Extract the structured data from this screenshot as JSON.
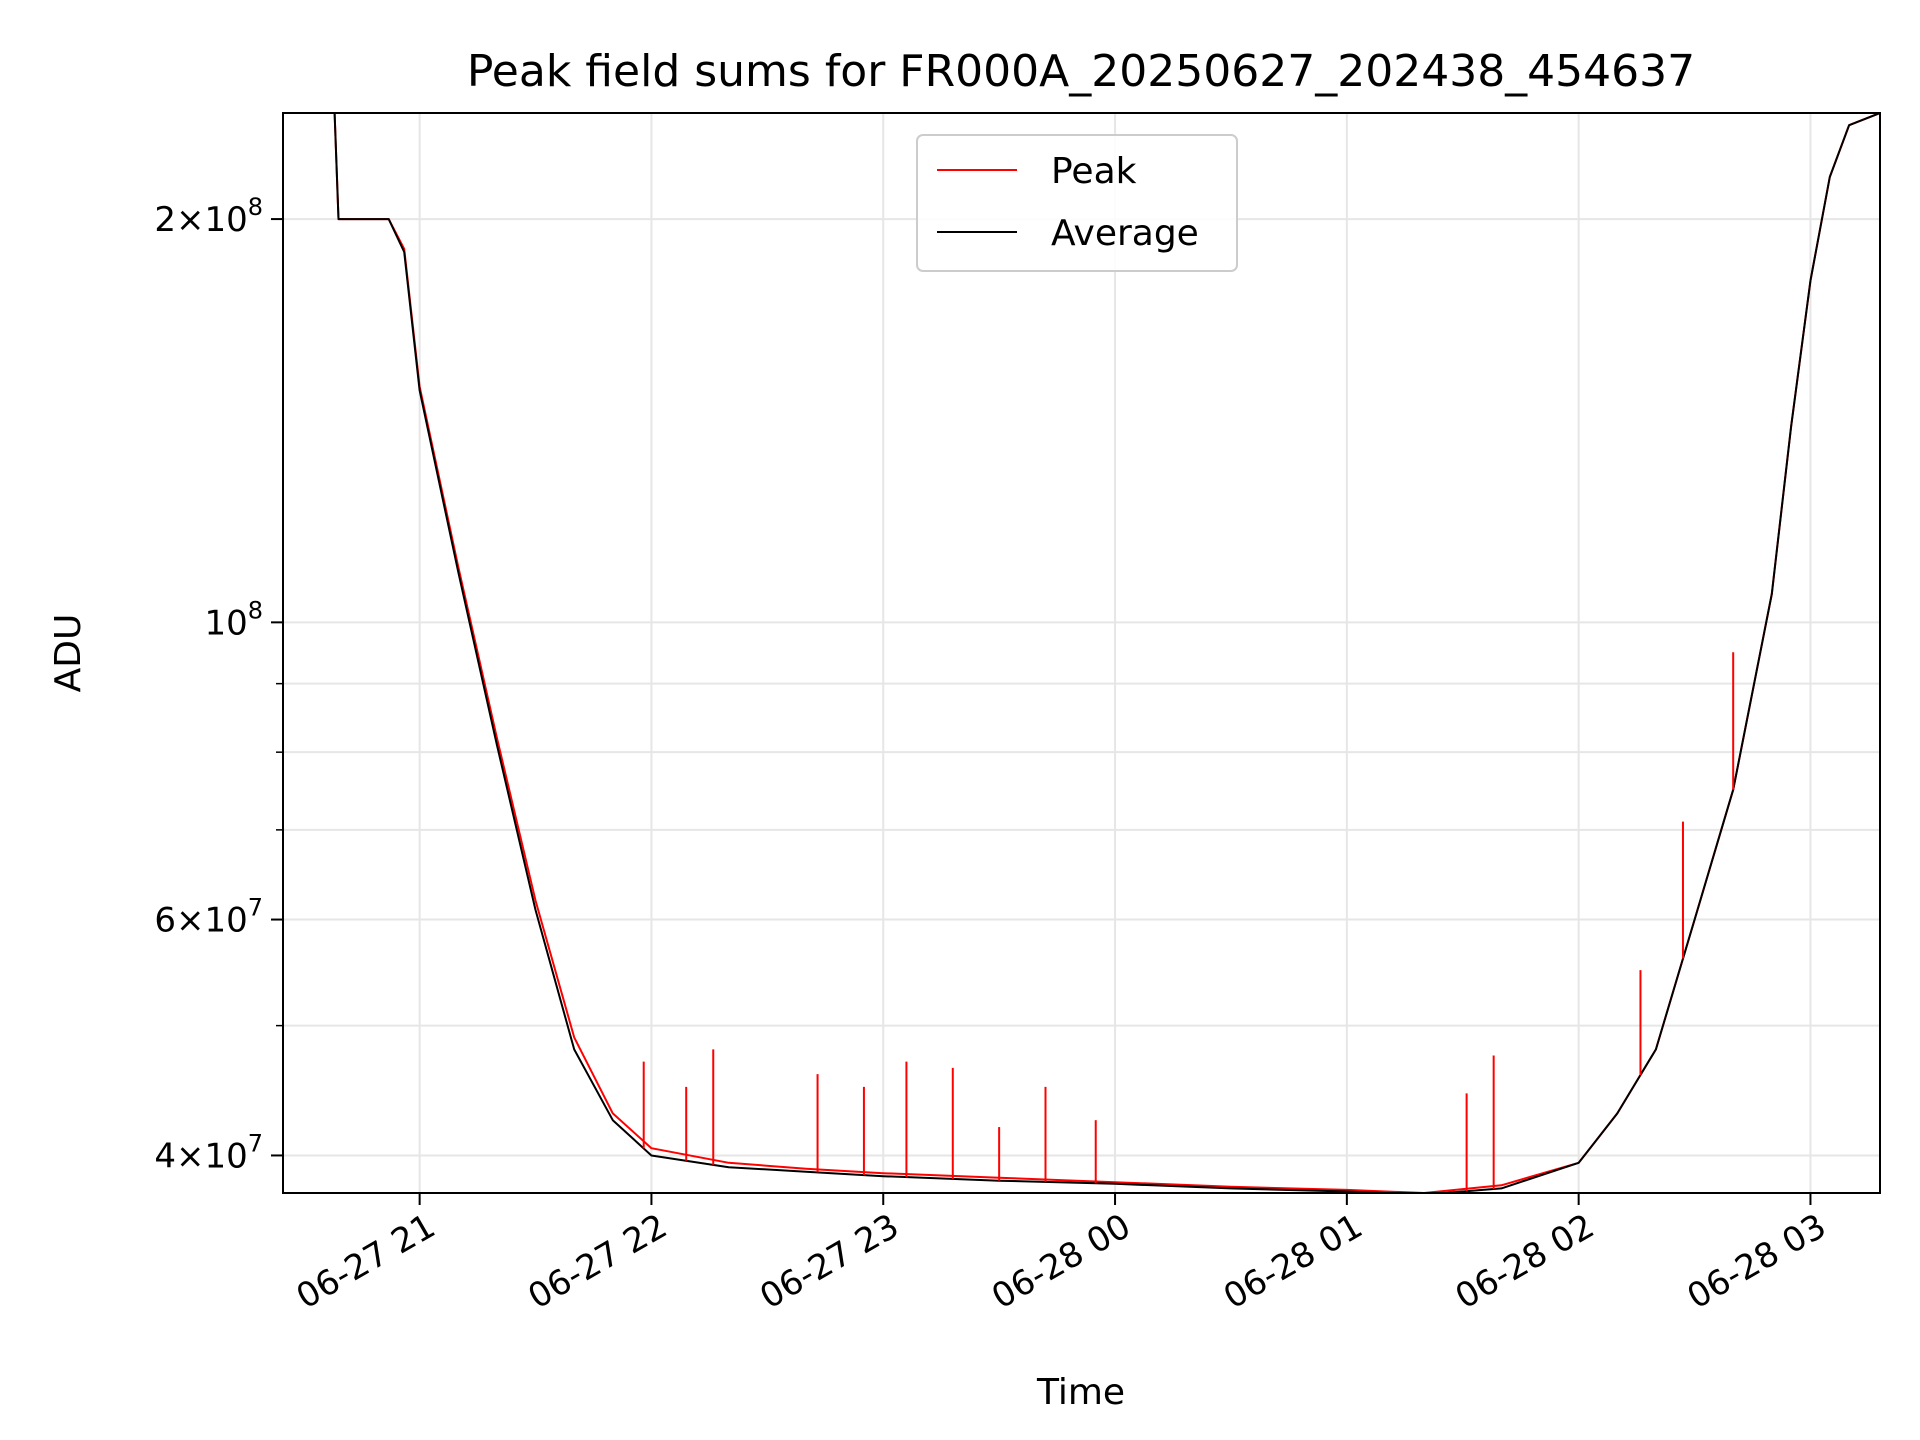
{
  "chart_data": {
    "type": "line",
    "title": "Peak field sums for FR000A_20250627_202438_454637",
    "xlabel": "Time",
    "ylabel": "ADU",
    "x_scale": "time",
    "y_scale": "log",
    "xlim": [
      "2025-06-27 20:24:38",
      "2025-06-28 03:18:00"
    ],
    "ylim": [
      37500000,
      240000000
    ],
    "grid": true,
    "legend_location": "upper-center",
    "x_ticks": [
      {
        "value": "2025-06-27 21:00",
        "label": "06-27 21"
      },
      {
        "value": "2025-06-27 22:00",
        "label": "06-27 22"
      },
      {
        "value": "2025-06-27 23:00",
        "label": "06-27 23"
      },
      {
        "value": "2025-06-28 00:00",
        "label": "06-28 00"
      },
      {
        "value": "2025-06-28 01:00",
        "label": "06-28 01"
      },
      {
        "value": "2025-06-28 02:00",
        "label": "06-28 02"
      },
      {
        "value": "2025-06-28 03:00",
        "label": "06-28 03"
      }
    ],
    "y_ticks": [
      {
        "value": 40000000,
        "mantissa": "4",
        "times": "×",
        "base": "10",
        "exp": "7"
      },
      {
        "value": 60000000,
        "mantissa": "6",
        "times": "×",
        "base": "10",
        "exp": "7"
      },
      {
        "value": 100000000,
        "mantissa": "",
        "times": "",
        "base": "10",
        "exp": "8"
      },
      {
        "value": 200000000,
        "mantissa": "2",
        "times": "×",
        "base": "10",
        "exp": "8"
      }
    ],
    "y_minor_ticks": [
      50000000,
      70000000,
      80000000,
      90000000
    ],
    "series": [
      {
        "name": "Peak",
        "color": "#ff0000",
        "x": [
          "2025-06-27 20:24:38",
          "2025-06-27 20:38",
          "2025-06-27 20:39",
          "2025-06-27 20:49",
          "2025-06-27 20:52",
          "2025-06-27 20:56",
          "2025-06-27 21:00",
          "2025-06-27 21:10",
          "2025-06-27 21:20",
          "2025-06-27 21:30",
          "2025-06-27 21:40",
          "2025-06-27 21:50",
          "2025-06-27 22:00",
          "2025-06-27 22:20",
          "2025-06-27 22:40",
          "2025-06-27 23:00",
          "2025-06-27 23:30",
          "2025-06-28 00:00",
          "2025-06-28 00:30",
          "2025-06-28 01:00",
          "2025-06-28 01:20",
          "2025-06-28 01:40",
          "2025-06-28 02:00",
          "2025-06-28 02:10",
          "2025-06-28 02:20",
          "2025-06-28 02:30",
          "2025-06-28 02:40",
          "2025-06-28 02:50",
          "2025-06-28 02:55",
          "2025-06-28 03:00",
          "2025-06-28 03:05",
          "2025-06-28 03:10",
          "2025-06-28 03:18"
        ],
        "y": [
          240000000,
          240000000,
          200000000,
          200000000,
          200000000,
          190000000,
          150000000,
          110000000,
          82000000,
          62000000,
          49000000,
          43000000,
          40500000,
          39500000,
          39100000,
          38800000,
          38500000,
          38200000,
          37900000,
          37700000,
          37500000,
          38000000,
          39500000,
          43000000,
          48000000,
          60000000,
          75000000,
          105000000,
          140000000,
          180000000,
          215000000,
          235000000,
          240000000
        ]
      },
      {
        "name": "Average",
        "color": "#000000",
        "x": [
          "2025-06-27 20:24:38",
          "2025-06-27 20:38",
          "2025-06-27 20:39",
          "2025-06-27 20:49",
          "2025-06-27 20:52",
          "2025-06-27 20:56",
          "2025-06-27 21:00",
          "2025-06-27 21:10",
          "2025-06-27 21:20",
          "2025-06-27 21:30",
          "2025-06-27 21:40",
          "2025-06-27 21:50",
          "2025-06-27 22:00",
          "2025-06-27 22:20",
          "2025-06-27 22:40",
          "2025-06-27 23:00",
          "2025-06-27 23:30",
          "2025-06-28 00:00",
          "2025-06-28 00:30",
          "2025-06-28 01:00",
          "2025-06-28 01:20",
          "2025-06-28 01:40",
          "2025-06-28 02:00",
          "2025-06-28 02:10",
          "2025-06-28 02:20",
          "2025-06-28 02:30",
          "2025-06-28 02:40",
          "2025-06-28 02:50",
          "2025-06-28 02:55",
          "2025-06-28 03:00",
          "2025-06-28 03:05",
          "2025-06-28 03:10",
          "2025-06-28 03:18"
        ],
        "y": [
          240000000,
          240000000,
          200000000,
          200000000,
          200000000,
          189000000,
          149000000,
          109000000,
          81000000,
          61000000,
          48000000,
          42500000,
          40000000,
          39200000,
          38900000,
          38600000,
          38300000,
          38100000,
          37800000,
          37600000,
          37400000,
          37800000,
          39500000,
          43000000,
          48000000,
          60000000,
          75000000,
          105000000,
          140000000,
          180000000,
          215000000,
          235000000,
          240000000
        ]
      }
    ],
    "peak_spikes": [
      {
        "x": "2025-06-27 21:58",
        "y": 47000000
      },
      {
        "x": "2025-06-27 22:09",
        "y": 45000000
      },
      {
        "x": "2025-06-27 22:16",
        "y": 48000000
      },
      {
        "x": "2025-06-27 22:43",
        "y": 46000000
      },
      {
        "x": "2025-06-27 22:55",
        "y": 45000000
      },
      {
        "x": "2025-06-27 23:06",
        "y": 47000000
      },
      {
        "x": "2025-06-27 23:18",
        "y": 46500000
      },
      {
        "x": "2025-06-27 23:30",
        "y": 42000000
      },
      {
        "x": "2025-06-27 23:42",
        "y": 45000000
      },
      {
        "x": "2025-06-27 23:55",
        "y": 42500000
      },
      {
        "x": "2025-06-28 01:31",
        "y": 44500000
      },
      {
        "x": "2025-06-28 01:38",
        "y": 47500000
      },
      {
        "x": "2025-06-28 02:16",
        "y": 55000000
      },
      {
        "x": "2025-06-28 02:27",
        "y": 71000000
      },
      {
        "x": "2025-06-28 02:40",
        "y": 95000000
      }
    ]
  }
}
